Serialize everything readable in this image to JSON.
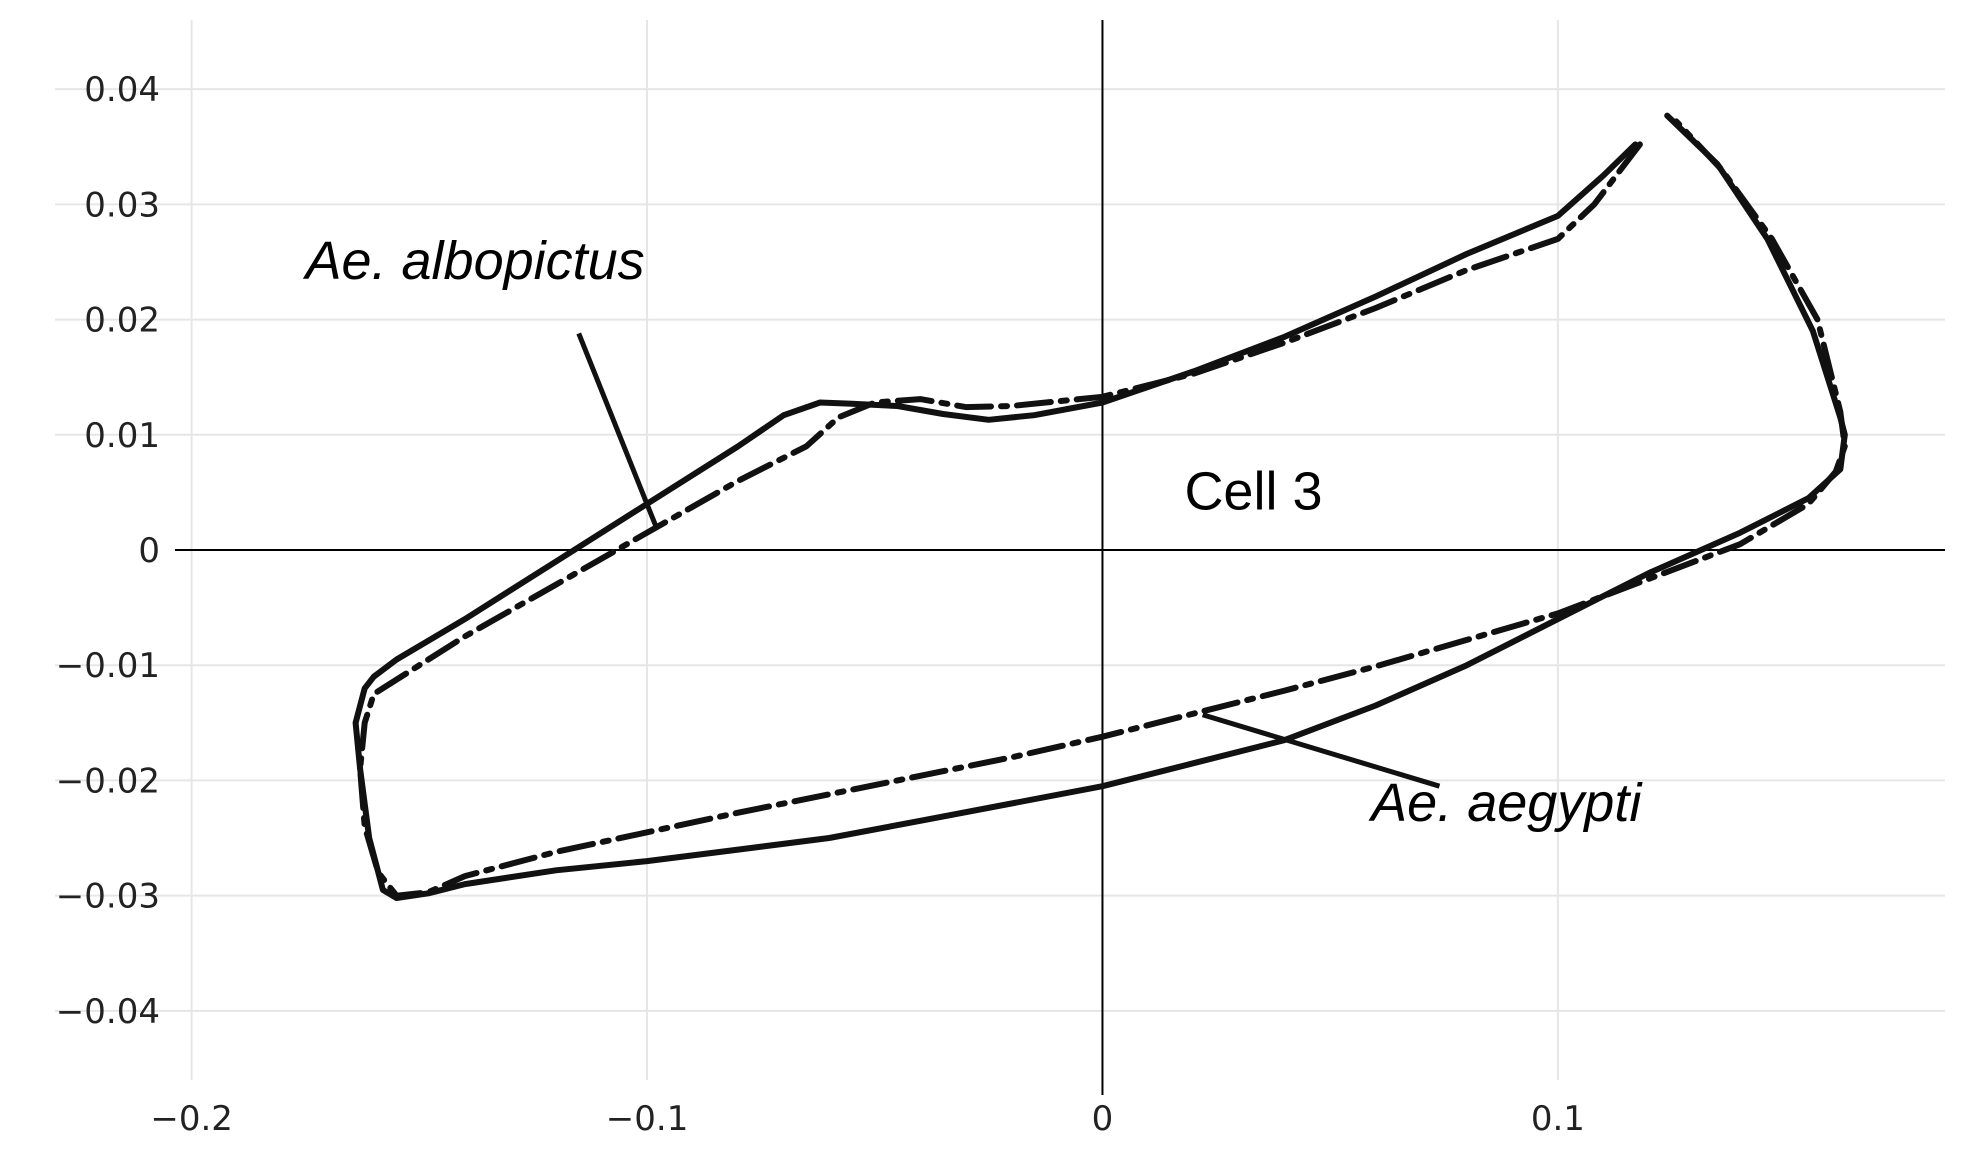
{
  "chart_data": {
    "type": "line",
    "title": "",
    "xlabel": "",
    "ylabel": "",
    "xlim": [
      -0.23,
      0.185
    ],
    "ylim": [
      -0.046,
      0.046
    ],
    "grid": true,
    "x_ticks": [
      -0.2,
      -0.1,
      0,
      0.1
    ],
    "x_tick_labels": [
      "−0.2",
      "−0.1",
      "0",
      "0.1"
    ],
    "y_ticks": [
      0.04,
      0.03,
      0.02,
      0.01,
      0,
      -0.01,
      -0.02,
      -0.03,
      -0.04
    ],
    "y_tick_labels": [
      "0.04",
      "0.03",
      "0.02",
      "0.01",
      "0",
      "−0.01",
      "−0.02",
      "−0.03",
      "−0.04"
    ],
    "series": [
      {
        "style": "solid",
        "color": "#111111",
        "points": [
          [
            0.124,
            0.0377
          ],
          [
            0.135,
            0.0335
          ],
          [
            0.146,
            0.027
          ],
          [
            0.156,
            0.019
          ],
          [
            0.162,
            0.0115
          ],
          [
            0.163,
            0.01
          ],
          [
            0.162,
            0.007
          ],
          [
            0.155,
            0.0045
          ],
          [
            0.14,
            0.0015
          ],
          [
            0.12,
            -0.002
          ],
          [
            0.1,
            -0.006
          ],
          [
            0.08,
            -0.01
          ],
          [
            0.06,
            -0.0135
          ],
          [
            0.04,
            -0.0165
          ],
          [
            0.02,
            -0.0185
          ],
          [
            0.0,
            -0.0205
          ],
          [
            -0.02,
            -0.022
          ],
          [
            -0.04,
            -0.0235
          ],
          [
            -0.06,
            -0.025
          ],
          [
            -0.08,
            -0.026
          ],
          [
            -0.1,
            -0.027
          ],
          [
            -0.12,
            -0.0278
          ],
          [
            -0.14,
            -0.029
          ],
          [
            -0.148,
            -0.0298
          ],
          [
            -0.155,
            -0.0302
          ],
          [
            -0.158,
            -0.0295
          ],
          [
            -0.161,
            -0.025
          ],
          [
            -0.163,
            -0.019
          ],
          [
            -0.164,
            -0.015
          ],
          [
            -0.162,
            -0.012
          ],
          [
            -0.16,
            -0.011
          ],
          [
            -0.155,
            -0.0095
          ],
          [
            -0.14,
            -0.006
          ],
          [
            -0.12,
            -0.001
          ],
          [
            -0.1,
            0.004
          ],
          [
            -0.08,
            0.009
          ],
          [
            -0.07,
            0.0117
          ],
          [
            -0.062,
            0.0128
          ],
          [
            -0.055,
            0.0127
          ],
          [
            -0.045,
            0.0125
          ],
          [
            -0.035,
            0.0118
          ],
          [
            -0.025,
            0.0113
          ],
          [
            -0.015,
            0.0117
          ],
          [
            0.0,
            0.0128
          ],
          [
            0.02,
            0.0155
          ],
          [
            0.04,
            0.0185
          ],
          [
            0.06,
            0.022
          ],
          [
            0.08,
            0.0257
          ],
          [
            0.1,
            0.029
          ],
          [
            0.11,
            0.0325
          ],
          [
            0.117,
            0.0352
          ]
        ]
      },
      {
        "style": "dashdot",
        "color": "#111111",
        "points": [
          [
            0.118,
            0.0352
          ],
          [
            0.108,
            0.03
          ],
          [
            0.1,
            0.027
          ],
          [
            0.08,
            0.0243
          ],
          [
            0.06,
            0.021
          ],
          [
            0.04,
            0.018
          ],
          [
            0.02,
            0.0153
          ],
          [
            0.0,
            0.0133
          ],
          [
            -0.02,
            0.0125
          ],
          [
            -0.03,
            0.0124
          ],
          [
            -0.04,
            0.0131
          ],
          [
            -0.05,
            0.0128
          ],
          [
            -0.058,
            0.0115
          ],
          [
            -0.065,
            0.009
          ],
          [
            -0.08,
            0.006
          ],
          [
            -0.1,
            0.0015
          ],
          [
            -0.12,
            -0.003
          ],
          [
            -0.14,
            -0.0075
          ],
          [
            -0.16,
            -0.0125
          ],
          [
            -0.162,
            -0.015
          ],
          [
            -0.163,
            -0.019
          ],
          [
            -0.162,
            -0.024
          ],
          [
            -0.159,
            -0.028
          ],
          [
            -0.155,
            -0.03
          ],
          [
            -0.148,
            -0.0297
          ],
          [
            -0.14,
            -0.0283
          ],
          [
            -0.12,
            -0.0262
          ],
          [
            -0.1,
            -0.0245
          ],
          [
            -0.08,
            -0.0228
          ],
          [
            -0.06,
            -0.0212
          ],
          [
            -0.04,
            -0.0196
          ],
          [
            -0.02,
            -0.018
          ],
          [
            0.0,
            -0.0162
          ],
          [
            0.02,
            -0.0142
          ],
          [
            0.04,
            -0.0122
          ],
          [
            0.06,
            -0.0101
          ],
          [
            0.08,
            -0.0078
          ],
          [
            0.1,
            -0.0055
          ],
          [
            0.12,
            -0.0025
          ],
          [
            0.14,
            0.0005
          ],
          [
            0.155,
            0.004
          ],
          [
            0.161,
            0.0068
          ],
          [
            0.163,
            0.009
          ],
          [
            0.162,
            0.012
          ],
          [
            0.157,
            0.02
          ],
          [
            0.147,
            0.027
          ],
          [
            0.136,
            0.033
          ],
          [
            0.126,
            0.0372
          ]
        ]
      }
    ],
    "annotations": [
      {
        "id": "albopictus",
        "text": "Ae. albopictus",
        "italic": true,
        "x": -0.175,
        "y": 0.0235,
        "arrow": [
          [
            -0.115,
            0.0188
          ],
          [
            -0.098,
            0.002
          ]
        ]
      },
      {
        "id": "aegypti",
        "text": "Ae. aegypti",
        "italic": true,
        "x": 0.059,
        "y": -0.0235,
        "arrow": [
          [
            0.074,
            -0.0205
          ],
          [
            0.022,
            -0.0143
          ]
        ]
      },
      {
        "id": "cell3",
        "text": "Cell 3",
        "italic": false,
        "x": 0.018,
        "y": 0.0035,
        "arrow": null
      }
    ]
  }
}
